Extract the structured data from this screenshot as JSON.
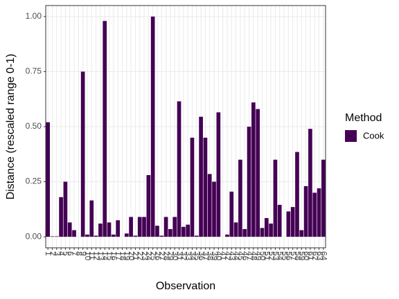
{
  "chart_data": {
    "type": "bar",
    "x_label": "Observation",
    "y_label": "Distance (rescaled range 0-1)",
    "legend_title": "Method",
    "categories": [
      "1",
      "2",
      "3",
      "4",
      "5",
      "6",
      "7",
      "8",
      "9",
      "10",
      "11",
      "12",
      "13",
      "14",
      "15",
      "16",
      "17",
      "18",
      "19",
      "20",
      "21",
      "22",
      "23",
      "24",
      "25",
      "26",
      "27",
      "28",
      "29",
      "30",
      "31",
      "32",
      "33",
      "34",
      "35",
      "36",
      "37",
      "38",
      "39",
      "40",
      "41",
      "42",
      "43",
      "44",
      "45",
      "46",
      "47",
      "48",
      "49",
      "50",
      "51",
      "52",
      "53",
      "54",
      "55",
      "56",
      "57",
      "58",
      "59",
      "60",
      "61",
      "62",
      "63",
      "64"
    ],
    "series": [
      {
        "name": "Cook",
        "color": "#440154",
        "values": [
          0.52,
          0.002,
          0.002,
          0.18,
          0.25,
          0.065,
          0.03,
          0.0,
          0.75,
          0.01,
          0.165,
          0.005,
          0.06,
          0.98,
          0.065,
          0.01,
          0.075,
          0.0,
          0.015,
          0.09,
          0.005,
          0.09,
          0.09,
          0.28,
          1.0,
          0.05,
          0.005,
          0.09,
          0.035,
          0.09,
          0.615,
          0.045,
          0.055,
          0.45,
          0.005,
          0.545,
          0.45,
          0.285,
          0.25,
          0.565,
          0.0,
          0.01,
          0.205,
          0.065,
          0.35,
          0.035,
          0.5,
          0.61,
          0.58,
          0.04,
          0.085,
          0.06,
          0.35,
          0.145,
          0.0,
          0.115,
          0.135,
          0.385,
          0.03,
          0.23,
          0.49,
          0.2,
          0.22,
          0.35
        ]
      }
    ],
    "ylim": [
      -0.05,
      1.05
    ],
    "yticks": [
      {
        "value": 0,
        "label": "0.00"
      },
      {
        "value": 0.25,
        "label": "0.25"
      },
      {
        "value": 0.5,
        "label": "0.50"
      },
      {
        "value": 0.75,
        "label": "0.75"
      },
      {
        "value": 1,
        "label": "1.00"
      }
    ],
    "grid": true,
    "legend": "right"
  }
}
